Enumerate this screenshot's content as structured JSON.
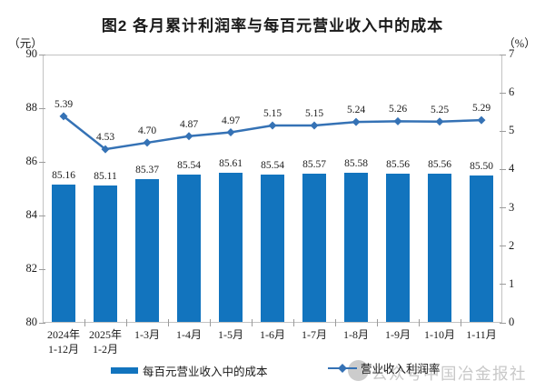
{
  "title": "图2 各月累计利润率与每百元营业收入中的成本",
  "axes": {
    "left_unit": "（元）",
    "right_unit": "（%）"
  },
  "chart_data": {
    "type": "bar+line combo",
    "title": "图2 各月累计利润率与每百元营业收入中的成本",
    "categories": [
      "2024年\n1-12月",
      "2025年\n1-2月",
      "1-3月",
      "1-4月",
      "1-5月",
      "1-6月",
      "1-7月",
      "1-8月",
      "1-9月",
      "1-10月",
      "1-11月"
    ],
    "series": [
      {
        "name": "每百元营业收入中的成本",
        "type": "bar",
        "axis": "left",
        "unit": "元",
        "values": [
          85.16,
          85.11,
          85.37,
          85.54,
          85.61,
          85.54,
          85.57,
          85.58,
          85.56,
          85.56,
          85.5
        ]
      },
      {
        "name": "营业收入利润率",
        "type": "line",
        "axis": "right",
        "unit": "%",
        "values": [
          5.39,
          4.53,
          4.7,
          4.87,
          4.97,
          5.15,
          5.15,
          5.24,
          5.26,
          5.25,
          5.29
        ]
      }
    ],
    "left_axis": {
      "min": 80,
      "max": 90,
      "ticks": [
        90,
        88,
        86,
        84,
        82,
        80
      ]
    },
    "right_axis": {
      "min": 0,
      "max": 7,
      "ticks": [
        7,
        6,
        5,
        4,
        3,
        2,
        1,
        0
      ]
    },
    "grid": false,
    "legend_position": "bottom",
    "data_labels": true
  },
  "watermark": {
    "text": "公众号中国冶金报社"
  },
  "colors": {
    "bar": "#1274be",
    "line": "#3572b5",
    "border": "#c3c3c3",
    "tick": "#9b9b9b",
    "text": "#1a1a1a",
    "watermark": "#c8c8c8"
  }
}
